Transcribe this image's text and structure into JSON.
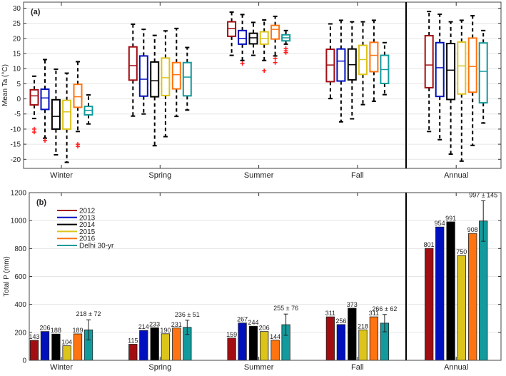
{
  "colors": {
    "2012": "#a20d12",
    "2013": "#0010bd",
    "2014": "#000000",
    "2015": "#dcc41b",
    "2016": "#ff7410",
    "Delhi 30-yr": "#139a9c",
    "outlier": "#ff1a1a"
  },
  "series_names": [
    "2012",
    "2013",
    "2014",
    "2015",
    "2016",
    "Delhi 30-yr"
  ],
  "chart_data": [
    {
      "type": "box",
      "panel_label": "(a)",
      "ylabel": "Mean Ta (°C)",
      "ylim": [
        -23,
        32
      ],
      "yticks": [
        30,
        25,
        20,
        15,
        10,
        5,
        0,
        -5,
        -10,
        -15,
        -20
      ],
      "grid": true,
      "categories": [
        "Winter",
        "Spring",
        "Summer",
        "Fall",
        "Annual"
      ],
      "series": [
        {
          "name": "2012",
          "boxes": [
            {
              "min": -6.5,
              "q1": -2,
              "median": 1,
              "q3": 3,
              "max": 7.5,
              "outliers": [
                -10,
                -11
              ]
            },
            {
              "min": -5.7,
              "q1": 6.2,
              "median": 11,
              "q3": 17.2,
              "max": 24.7,
              "outliers": []
            },
            {
              "min": 14.4,
              "q1": 20.7,
              "median": 23.3,
              "q3": 25.5,
              "max": 28.7,
              "outliers": []
            },
            {
              "min": 0.1,
              "q1": 5.7,
              "median": 11.2,
              "q3": 16.4,
              "max": 24.8,
              "outliers": []
            },
            {
              "min": -10.8,
              "q1": 3.7,
              "median": 11.2,
              "q3": 20.9,
              "max": 28.9,
              "outliers": []
            }
          ]
        },
        {
          "name": "2013",
          "boxes": [
            {
              "min": -13,
              "q1": -3.5,
              "median": 0.3,
              "q3": 3.2,
              "max": 13,
              "outliers": [
                -13.8
              ]
            },
            {
              "min": -5,
              "q1": 0.9,
              "median": 6.5,
              "q3": 14.2,
              "max": 23,
              "outliers": []
            },
            {
              "min": 12.7,
              "q1": 18.1,
              "median": 20,
              "q3": 22.6,
              "max": 27.9,
              "outliers": [
                11.7
              ]
            },
            {
              "min": -7.6,
              "q1": 5.9,
              "median": 12.5,
              "q3": 16.5,
              "max": 26,
              "outliers": []
            },
            {
              "min": -13.5,
              "q1": 0.8,
              "median": 10.3,
              "q3": 18.6,
              "max": 28,
              "outliers": []
            }
          ]
        },
        {
          "name": "2014",
          "boxes": [
            {
              "min": -18.5,
              "q1": -10,
              "median": -5.8,
              "q3": -0.3,
              "max": 9.8,
              "outliers": []
            },
            {
              "min": -15.5,
              "q1": 0.7,
              "median": 6,
              "q3": 12.2,
              "max": 21,
              "outliers": []
            },
            {
              "min": 14.4,
              "q1": 18.2,
              "median": 20.2,
              "q3": 21.7,
              "max": 25.3,
              "outliers": []
            },
            {
              "min": -6.6,
              "q1": 6.3,
              "median": 11.3,
              "q3": 16.5,
              "max": 25.5,
              "outliers": []
            },
            {
              "min": -18.3,
              "q1": -0.2,
              "median": 9.5,
              "q3": 18.3,
              "max": 25.5,
              "outliers": []
            }
          ]
        },
        {
          "name": "2015",
          "boxes": [
            {
              "min": -21,
              "q1": -10,
              "median": -4.3,
              "q3": -0.5,
              "max": 8.5,
              "outliers": []
            },
            {
              "min": -12.5,
              "q1": 1.1,
              "median": 7,
              "q3": 13.5,
              "max": 22.5,
              "outliers": []
            },
            {
              "min": 12.7,
              "q1": 18.1,
              "median": 20,
              "q3": 22.2,
              "max": 26.1,
              "outliers": [
                9.3
              ]
            },
            {
              "min": -1.9,
              "q1": 8.1,
              "median": 13,
              "q3": 17.7,
              "max": 25.5,
              "outliers": []
            },
            {
              "min": -20.6,
              "q1": 1.6,
              "median": 10.9,
              "q3": 18.8,
              "max": 26,
              "outliers": []
            }
          ]
        },
        {
          "name": "2016",
          "boxes": [
            {
              "min": -10.8,
              "q1": -2.8,
              "median": 0.7,
              "q3": 4.8,
              "max": 12.3,
              "outliers": [
                -15,
                -15.7
              ]
            },
            {
              "min": -5.8,
              "q1": 3.3,
              "median": 8,
              "q3": 12,
              "max": 23.3,
              "outliers": []
            },
            {
              "min": 14.2,
              "q1": 19.8,
              "median": 23,
              "q3": 24.3,
              "max": 27.3,
              "outliers": [
                13.4,
                12
              ]
            },
            {
              "min": -0.8,
              "q1": 9,
              "median": 14.4,
              "q3": 18.7,
              "max": 26,
              "outliers": []
            },
            {
              "min": -15.4,
              "q1": 2.2,
              "median": 10.7,
              "q3": 20.1,
              "max": 27.5,
              "outliers": []
            }
          ]
        },
        {
          "name": "Delhi 30-yr",
          "boxes": [
            {
              "min": -8.3,
              "q1": -5.3,
              "median": -3.8,
              "q3": -2.5,
              "max": 1.3,
              "outliers": []
            },
            {
              "min": -3.7,
              "q1": 1,
              "median": 7.2,
              "q3": 12,
              "max": 17,
              "outliers": []
            },
            {
              "min": 18.1,
              "q1": 19.2,
              "median": 20.2,
              "q3": 21.2,
              "max": 22.6,
              "outliers": [
                16.7,
                15.9,
                15.3
              ]
            },
            {
              "min": 1.4,
              "q1": 5.1,
              "median": 9.7,
              "q3": 14.4,
              "max": 18.6,
              "outliers": []
            },
            {
              "min": -8,
              "q1": -1.3,
              "median": 9.1,
              "q3": 18.5,
              "max": 22.6,
              "outliers": []
            }
          ]
        }
      ]
    },
    {
      "type": "bar",
      "panel_label": "(b)",
      "ylabel": "Total P (mm)",
      "ylim": [
        0,
        1200
      ],
      "yticks": [
        1200,
        1000,
        800,
        600,
        400,
        200,
        0
      ],
      "grid": true,
      "legend": "top-left",
      "categories": [
        "Winter",
        "Spring",
        "Summer",
        "Fall",
        "Annual"
      ],
      "series": [
        {
          "name": "2012",
          "values": [
            143,
            115,
            159,
            311,
            801
          ]
        },
        {
          "name": "2013",
          "values": [
            206,
            214,
            267,
            256,
            954
          ]
        },
        {
          "name": "2014",
          "values": [
            188,
            233,
            244,
            373,
            991
          ]
        },
        {
          "name": "2015",
          "values": [
            104,
            190,
            206,
            218,
            750
          ]
        },
        {
          "name": "2016",
          "values": [
            189,
            231,
            144,
            311,
            908
          ]
        },
        {
          "name": "Delhi 30-yr",
          "values": [
            218,
            236,
            255,
            266,
            997
          ],
          "errors": [
            72,
            51,
            76,
            62,
            145
          ],
          "labels": [
            "218 ± 72",
            "236 ± 51",
            "255 ± 76",
            "266 ± 62",
            "997 ± 145"
          ]
        }
      ]
    }
  ]
}
